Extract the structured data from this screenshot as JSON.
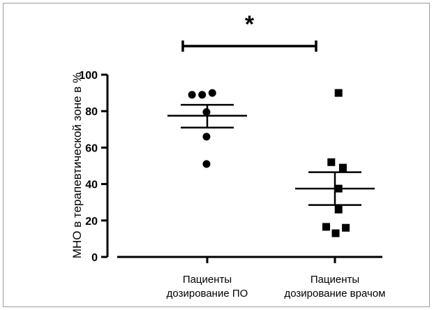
{
  "chart_data": {
    "type": "scatter",
    "title": "",
    "ylabel": "МНО в терапевтической зоне в %",
    "xlabel": "",
    "ylim": [
      0,
      100
    ],
    "yticks": [
      0,
      20,
      40,
      60,
      80,
      100
    ],
    "grid": false,
    "categories": [
      [
        "Пациенты",
        "дозирование ПО"
      ],
      [
        "Пациенты",
        "дозирование врачом"
      ]
    ],
    "series": [
      {
        "marker": "circle",
        "color": "#000000",
        "points": [
          {
            "offset": -0.42,
            "value": 89
          },
          {
            "offset": -0.14,
            "value": 89
          },
          {
            "offset": 0.14,
            "value": 90
          },
          {
            "offset": -0.02,
            "value": 79.5
          },
          {
            "offset": -0.02,
            "value": 66
          },
          {
            "offset": -0.02,
            "value": 51
          }
        ],
        "mean": 77.5,
        "sem": [
          71,
          83.5
        ]
      },
      {
        "marker": "square",
        "color": "#000000",
        "points": [
          {
            "offset": 0.1,
            "value": 90
          },
          {
            "offset": -0.1,
            "value": 52
          },
          {
            "offset": 0.22,
            "value": 49
          },
          {
            "offset": 0.1,
            "value": 37.5
          },
          {
            "offset": 0.1,
            "value": 26
          },
          {
            "offset": -0.24,
            "value": 16.5
          },
          {
            "offset": 0.3,
            "value": 16
          },
          {
            "offset": 0.02,
            "value": 13
          }
        ],
        "mean": 37.5,
        "sem": [
          28.5,
          46.5
        ]
      }
    ],
    "annotation": {
      "text": "*",
      "between": [
        0,
        1
      ]
    }
  }
}
